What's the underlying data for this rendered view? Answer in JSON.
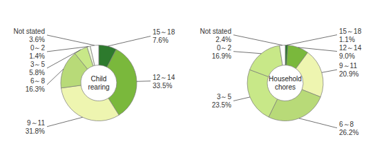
{
  "chart_data": [
    {
      "type": "pie",
      "title": "Child\nrearing",
      "categories": [
        "15～18",
        "12～14",
        "9～11",
        "6～8",
        "3～5",
        "0～2",
        "Not stated"
      ],
      "values": [
        7.6,
        33.5,
        31.8,
        16.3,
        5.8,
        1.4,
        3.6
      ],
      "value_labels": [
        "7.6%",
        "33.5%",
        "31.8%",
        "16.3%",
        "5.8%",
        "1.4%",
        "3.6%"
      ],
      "colors": [
        "#2d7a2d",
        "#7ab83c",
        "#eef5b0",
        "#b8da78",
        "#c8e888",
        "#f0f8e0",
        "#ffffff"
      ]
    },
    {
      "type": "pie",
      "title": "Household\nchores",
      "categories": [
        "15～18",
        "12～14",
        "9～11",
        "6～8",
        "3～5",
        "0～2",
        "Not stated"
      ],
      "values": [
        1.1,
        9.0,
        20.9,
        26.2,
        23.5,
        16.9,
        2.4
      ],
      "value_labels": [
        "1.1%",
        "9.0%",
        "20.9%",
        "26.2%",
        "23.5%",
        "16.9%",
        "2.4%"
      ],
      "colors": [
        "#2d7a2d",
        "#7ab83c",
        "#eef5b0",
        "#b8da78",
        "#c8e888",
        "#c8e888",
        "#ffffff"
      ]
    }
  ]
}
